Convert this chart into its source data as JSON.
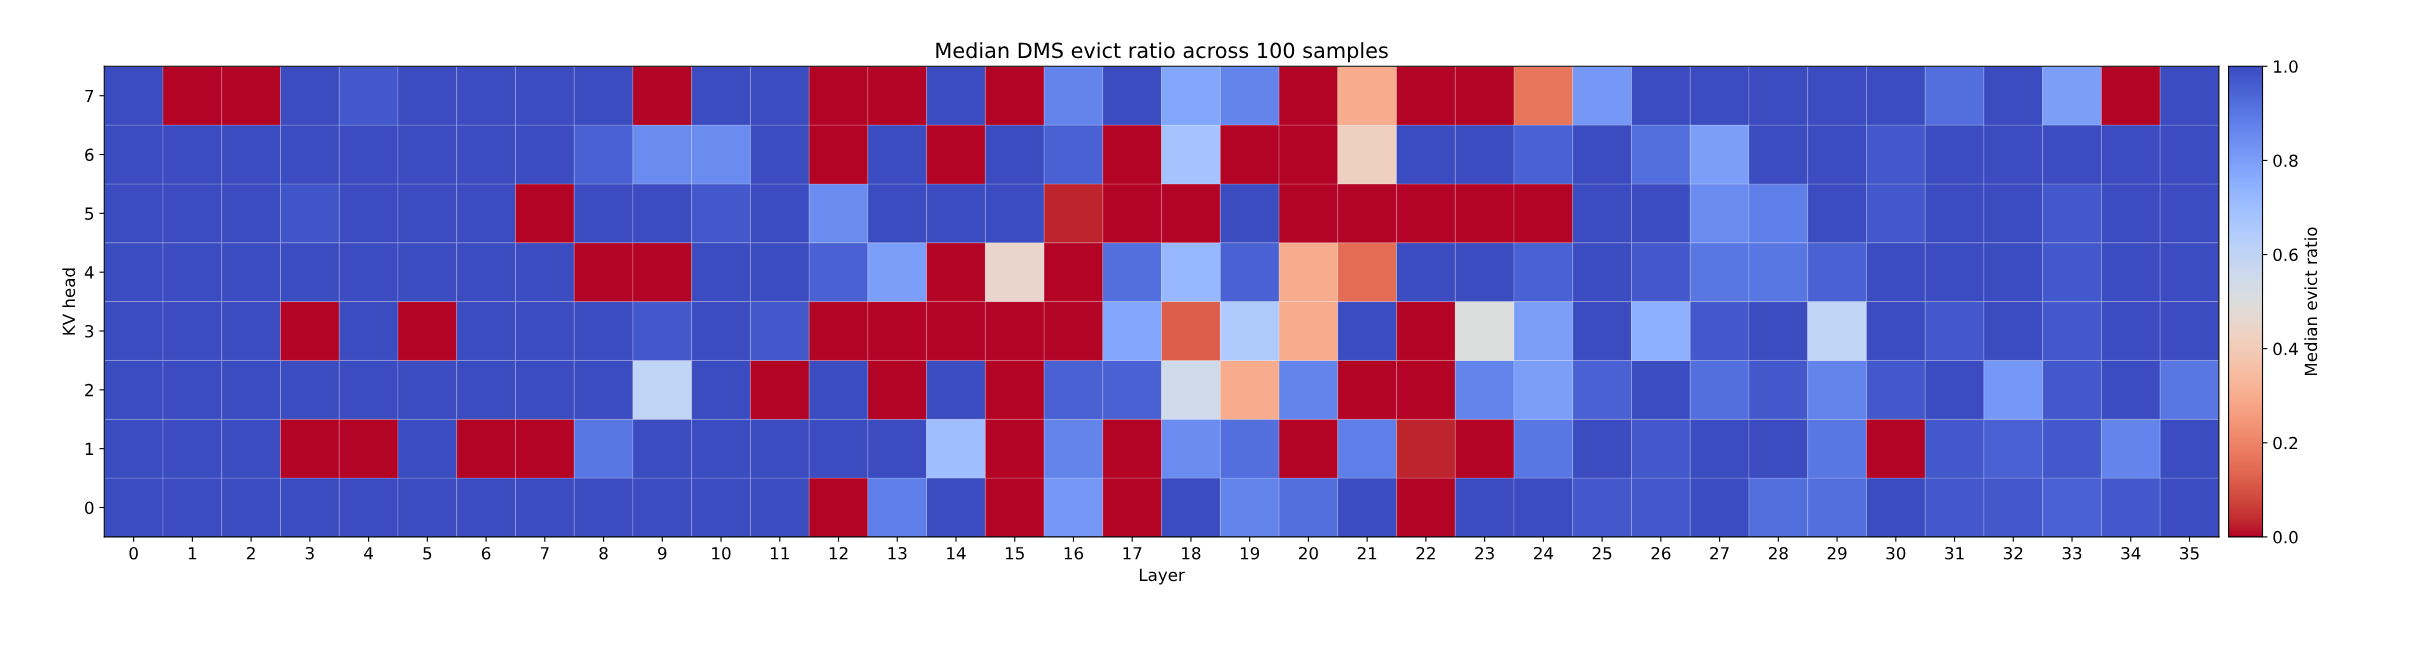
{
  "chart_data": {
    "type": "heatmap",
    "title": "Median DMS evict ratio across 100 samples",
    "xlabel": "Layer",
    "ylabel": "KV head",
    "clabel": "Median evict ratio",
    "categories": [
      "0",
      "1",
      "2",
      "3",
      "4",
      "5",
      "6",
      "7",
      "8",
      "9",
      "10",
      "11",
      "12",
      "13",
      "14",
      "15",
      "16",
      "17",
      "18",
      "19",
      "20",
      "21",
      "22",
      "23",
      "24",
      "25",
      "26",
      "27",
      "28",
      "29",
      "30",
      "31",
      "32",
      "33",
      "34",
      "35"
    ],
    "y_categories": [
      "7",
      "6",
      "5",
      "4",
      "3",
      "2",
      "1",
      "0"
    ],
    "cells": [
      [
        1,
        0,
        0,
        1,
        0.97,
        1,
        1,
        1,
        1,
        0,
        1,
        1,
        0,
        0,
        1,
        0,
        0.87,
        1,
        0.78,
        0.87,
        0,
        0.3,
        0,
        0,
        0.17,
        0.82,
        1,
        1,
        1,
        1,
        1,
        0.92,
        1,
        0.8,
        0,
        1
      ],
      [
        1,
        1,
        1,
        1,
        1,
        1,
        1,
        1,
        0.95,
        0.85,
        0.85,
        1,
        0,
        1,
        0,
        1,
        0.95,
        0,
        0.68,
        0,
        0,
        0.42,
        1,
        1,
        0.95,
        1,
        0.92,
        0.8,
        1,
        1,
        0.97,
        1,
        1,
        1,
        1,
        1
      ],
      [
        1,
        1,
        1,
        0.98,
        1,
        1,
        1,
        0,
        1,
        1,
        0.97,
        1,
        0.85,
        1,
        1,
        1,
        0.03,
        0,
        0,
        1,
        0,
        0,
        0,
        0,
        0,
        1,
        1,
        0.85,
        0.88,
        1,
        0.97,
        1,
        1,
        0.97,
        1,
        1
      ],
      [
        1,
        1,
        1,
        1,
        1,
        1,
        1,
        1,
        0,
        0,
        1,
        1,
        0.95,
        0.8,
        0,
        0.45,
        0,
        0.92,
        0.72,
        0.95,
        0.3,
        0.15,
        1,
        1,
        0.95,
        1,
        0.97,
        0.9,
        0.9,
        0.95,
        1,
        1,
        1,
        0.97,
        1,
        1
      ],
      [
        1,
        1,
        1,
        0,
        1,
        0,
        1,
        1,
        1,
        0.97,
        1,
        0.97,
        0,
        0,
        0,
        0,
        0,
        0.78,
        0.12,
        0.65,
        0.3,
        1,
        0,
        0.5,
        0.8,
        1,
        0.75,
        0.97,
        1,
        0.6,
        1,
        0.97,
        1,
        0.97,
        1,
        1
      ],
      [
        1,
        1,
        1,
        1,
        1,
        1,
        1,
        1,
        1,
        0.6,
        1,
        0,
        1,
        0,
        1,
        0,
        0.95,
        0.95,
        0.55,
        0.3,
        0.87,
        0,
        0,
        0.87,
        0.8,
        0.95,
        1,
        0.92,
        0.97,
        0.87,
        0.97,
        1,
        0.82,
        0.97,
        1,
        0.9
      ],
      [
        1,
        1,
        1,
        0,
        0,
        1,
        0,
        0,
        0.9,
        1,
        1,
        1,
        1,
        1,
        0.7,
        0,
        0.87,
        0,
        0.85,
        0.92,
        0,
        0.88,
        0.03,
        0,
        0.9,
        1,
        0.97,
        1,
        1,
        0.9,
        0,
        0.97,
        0.95,
        0.97,
        0.87,
        1
      ],
      [
        1,
        1,
        1,
        1,
        1,
        1,
        1,
        1,
        1,
        1,
        1,
        1,
        0,
        0.88,
        1,
        0,
        0.82,
        0,
        1,
        0.87,
        0.92,
        1,
        0,
        1,
        1,
        0.97,
        0.97,
        1,
        0.92,
        0.92,
        1,
        0.97,
        0.97,
        0.95,
        0.97,
        1
      ]
    ],
    "clim": [
      0,
      1.0
    ],
    "cticks": [
      {
        "value": 0,
        "label": "0.0"
      },
      0.2,
      0.4,
      0.6,
      0.8,
      {
        "value": 1.0,
        "label": "1.0"
      }
    ]
  }
}
